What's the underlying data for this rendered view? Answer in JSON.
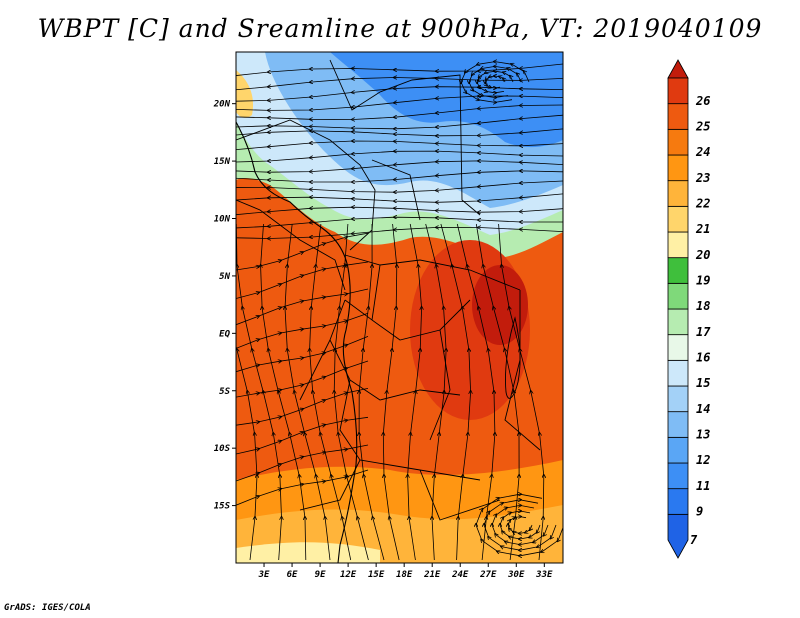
{
  "title": "WBPT [C] and Sreamline at 900hPa, VT: 2019040109",
  "footer": "GrADS: IGES/COLA",
  "map": {
    "lat_range": [
      -20,
      24.5
    ],
    "lon_range": [
      0,
      35
    ],
    "lat_ticks": [
      {
        "value": 20,
        "label": "20N"
      },
      {
        "value": 15,
        "label": "15N"
      },
      {
        "value": 10,
        "label": "10N"
      },
      {
        "value": 5,
        "label": "5N"
      },
      {
        "value": 0,
        "label": "EQ"
      },
      {
        "value": -5,
        "label": "5S"
      },
      {
        "value": -10,
        "label": "10S"
      },
      {
        "value": -15,
        "label": "15S"
      }
    ],
    "lon_ticks": [
      {
        "value": 3,
        "label": "3E"
      },
      {
        "value": 6,
        "label": "6E"
      },
      {
        "value": 9,
        "label": "9E"
      },
      {
        "value": 12,
        "label": "12E"
      },
      {
        "value": 15,
        "label": "15E"
      },
      {
        "value": 18,
        "label": "18E"
      },
      {
        "value": 21,
        "label": "21E"
      },
      {
        "value": 24,
        "label": "24E"
      },
      {
        "value": 27,
        "label": "27E"
      },
      {
        "value": 30,
        "label": "30E"
      },
      {
        "value": 33,
        "label": "33E"
      }
    ]
  },
  "colorbar": {
    "levels": [
      {
        "label": "7",
        "color": "#1f63e6"
      },
      {
        "label": "9",
        "color": "#2a79f0"
      },
      {
        "label": "11",
        "color": "#3d8ff5"
      },
      {
        "label": "12",
        "color": "#5aa6f5"
      },
      {
        "label": "13",
        "color": "#7fbcf5"
      },
      {
        "label": "14",
        "color": "#a3d1f7"
      },
      {
        "label": "15",
        "color": "#cde8fa"
      },
      {
        "label": "16",
        "color": "#e8f8e8"
      },
      {
        "label": "17",
        "color": "#b6ecb1"
      },
      {
        "label": "18",
        "color": "#7fd97a"
      },
      {
        "label": "19",
        "color": "#3fbf3c"
      },
      {
        "label": "20",
        "color": "#fff0a5"
      },
      {
        "label": "21",
        "color": "#ffd56b"
      },
      {
        "label": "22",
        "color": "#ffb43a"
      },
      {
        "label": "23",
        "color": "#ff9612"
      },
      {
        "label": "24",
        "color": "#f67a0f"
      },
      {
        "label": "25",
        "color": "#ee5a10"
      },
      {
        "label": "26",
        "color": "#e03a10"
      }
    ],
    "top_color": "#c21c0c"
  }
}
